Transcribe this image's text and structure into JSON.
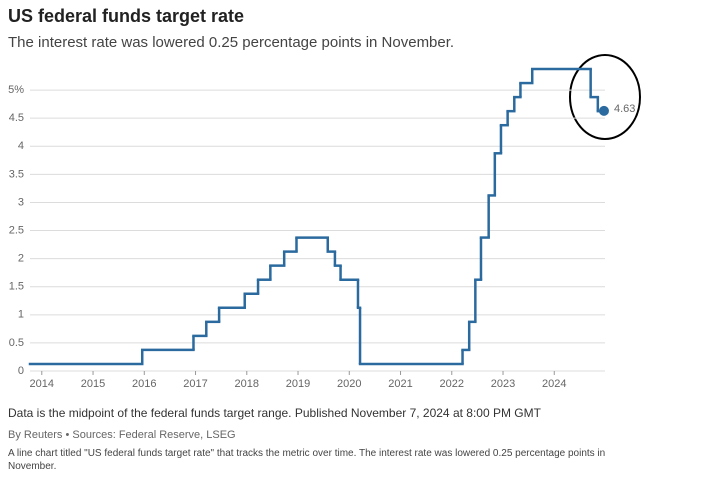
{
  "chart_data": {
    "type": "step-line",
    "title": "US federal funds target rate",
    "subtitle": "The interest rate was lowered 0.25 percentage points in November.",
    "note": "Data is the midpoint of the federal funds target range. Published November 7, 2024 at 8:00 PM GMT",
    "source": "By Reuters • Sources: Federal Reserve, LSEG",
    "description": "A line chart titled \"US federal funds target rate\" that tracks the metric over time. The interest rate was lowered 0.25 percentage points in November.",
    "xlim": [
      2013.77,
      2024.99
    ],
    "xticks": [
      2014,
      2015,
      2016,
      2017,
      2018,
      2019,
      2020,
      2021,
      2022,
      2023,
      2024
    ],
    "ylim": [
      0,
      5.5
    ],
    "yticks": [
      0,
      0.5,
      1,
      1.5,
      2,
      2.5,
      3,
      3.5,
      4,
      4.5,
      {
        "value": 5,
        "label": "5%"
      }
    ],
    "grid": true,
    "x": [
      2013.77,
      2015.96,
      2016.96,
      2017.21,
      2017.46,
      2017.96,
      2018.22,
      2018.46,
      2018.73,
      2018.97,
      2019.58,
      2019.72,
      2019.83,
      2020.17,
      2020.21,
      2022.21,
      2022.34,
      2022.46,
      2022.57,
      2022.72,
      2022.84,
      2022.96,
      2023.09,
      2023.22,
      2023.34,
      2023.57,
      2024.71,
      2024.85,
      2024.97
    ],
    "series": [
      {
        "name": "Federal funds target rate",
        "color": "#2b6a9e",
        "values": [
          0.125,
          0.375,
          0.625,
          0.875,
          1.125,
          1.375,
          1.625,
          1.875,
          2.125,
          2.375,
          2.125,
          1.875,
          1.625,
          1.125,
          0.125,
          0.375,
          0.875,
          1.625,
          2.375,
          3.125,
          3.875,
          4.375,
          4.625,
          4.875,
          5.125,
          5.375,
          4.875,
          4.625,
          4.63
        ],
        "value_labels": [
          null,
          null,
          null,
          null,
          null,
          null,
          null,
          null,
          null,
          null,
          null,
          null,
          null,
          null,
          null,
          null,
          null,
          null,
          null,
          null,
          null,
          null,
          null,
          null,
          null,
          null,
          null,
          null,
          "4.63"
        ]
      }
    ]
  }
}
